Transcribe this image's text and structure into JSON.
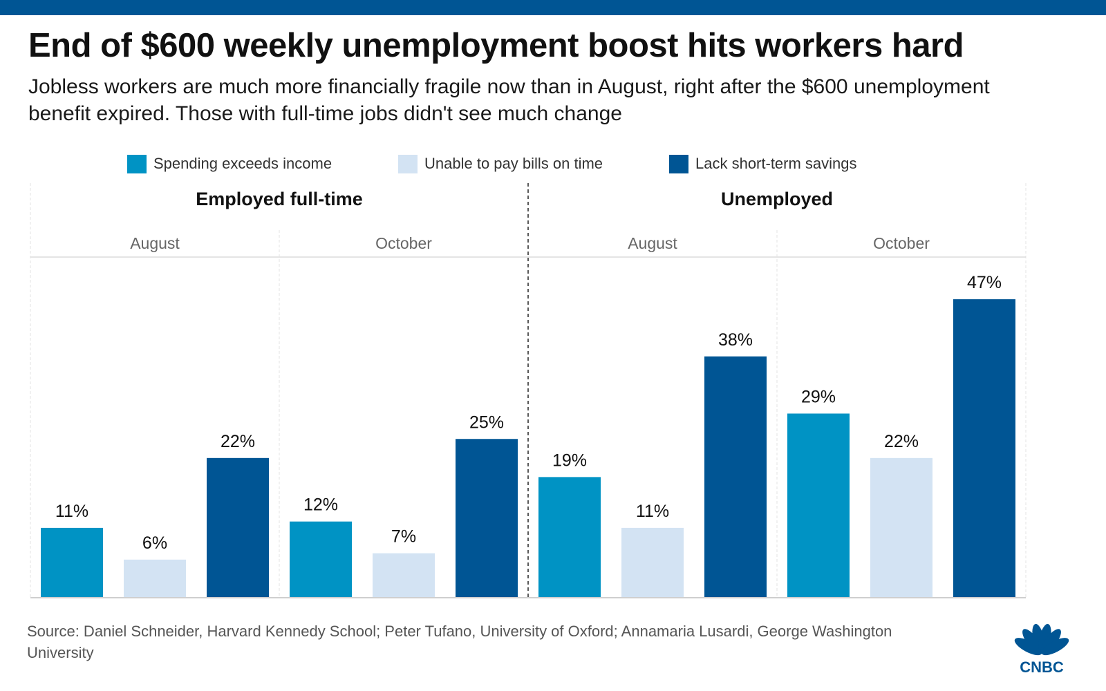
{
  "header": {
    "title": "End of $600 weekly unemployment boost hits workers hard",
    "subtitle": "Jobless workers are much more financially fragile now than in August, right after the $600 unemployment benefit expired. Those with full-time jobs didn't see much change"
  },
  "legend": {
    "items": [
      {
        "label": "Spending exceeds income",
        "color": "#0093c4"
      },
      {
        "label": "Unable to pay bills on time",
        "color": "#d3e3f3"
      },
      {
        "label": "Lack short-term savings",
        "color": "#005594"
      }
    ]
  },
  "chart_data": {
    "type": "bar",
    "title": "End of $600 weekly unemployment boost hits workers hard",
    "ylim": [
      0,
      50
    ],
    "value_suffix": "%",
    "series_names": [
      "Spending exceeds income",
      "Unable to pay bills on time",
      "Lack short-term savings"
    ],
    "series_colors": [
      "#0093c4",
      "#d3e3f3",
      "#005594"
    ],
    "groups": [
      {
        "name": "Employed full-time",
        "periods": [
          {
            "label": "August",
            "values": [
              11,
              6,
              22
            ]
          },
          {
            "label": "October",
            "values": [
              12,
              7,
              25
            ]
          }
        ]
      },
      {
        "name": "Unemployed",
        "periods": [
          {
            "label": "August",
            "values": [
              19,
              11,
              38
            ]
          },
          {
            "label": "October",
            "values": [
              29,
              22,
              47
            ]
          }
        ]
      }
    ]
  },
  "footer": {
    "source": "Source: Daniel Schneider, Harvard Kennedy School; Peter Tufano, University of Oxford; Annamaria Lusardi, George Washington University",
    "logo_text": "CNBC"
  },
  "colors": {
    "topbar": "#005594",
    "logo": "#005594"
  }
}
